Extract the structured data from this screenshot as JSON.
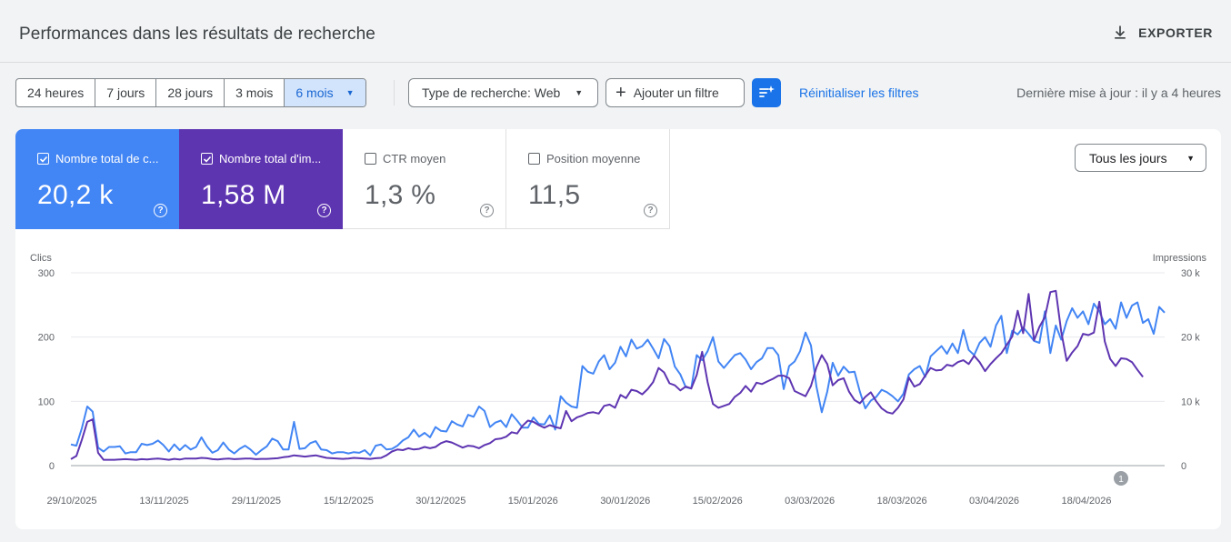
{
  "header": {
    "title": "Performances dans les résultats de recherche",
    "export_label": "EXPORTER"
  },
  "toolbar": {
    "ranges": [
      "24 heures",
      "7 jours",
      "28 jours",
      "3 mois",
      "6 mois"
    ],
    "active_range": "6 mois",
    "search_type": "Type de recherche: Web",
    "add_filter": "Ajouter un filtre",
    "reset_filters": "Réinitialiser les filtres",
    "last_update": "Dernière mise à jour : il y a 4 heures"
  },
  "metrics": [
    {
      "label": "Nombre total de c...",
      "value": "20,2 k",
      "checked": true,
      "color": "#4285f4"
    },
    {
      "label": "Nombre total d'im...",
      "value": "1,58 M",
      "checked": true,
      "color": "#5e35b1"
    },
    {
      "label": "CTR moyen",
      "value": "1,3 %",
      "checked": false
    },
    {
      "label": "Position moyenne",
      "value": "11,5",
      "checked": false
    }
  ],
  "granularity": "Tous les jours",
  "colors": {
    "clicks": "#4285f4",
    "impressions": "#5e35b1",
    "accent": "#1a73e8"
  },
  "chart_data": {
    "type": "line",
    "left_axis_title": "Clics",
    "right_axis_title": "Impressions",
    "left_ticks": [
      "0",
      "100",
      "200",
      "300"
    ],
    "right_ticks": [
      "0",
      "10 k",
      "20 k",
      "30 k"
    ],
    "ylim_left": [
      0,
      300
    ],
    "ylim_right": [
      0,
      30000
    ],
    "x_tick_labels": [
      "29/10/2025",
      "13/11/2025",
      "29/11/2025",
      "15/12/2025",
      "30/12/2025",
      "15/01/2026",
      "30/01/2026",
      "15/02/2026",
      "03/03/2026",
      "18/03/2026",
      "03/04/2026",
      "18/04/2026"
    ],
    "annotation": "1",
    "grid": true,
    "series": [
      {
        "name": "Clics",
        "axis": "left",
        "values": [
          33,
          31,
          58,
          92,
          84,
          28,
          22,
          29,
          29,
          30,
          19,
          21,
          21,
          34,
          32,
          34,
          39,
          32,
          22,
          33,
          24,
          32,
          25,
          29,
          44,
          30,
          20,
          24,
          36,
          25,
          19,
          26,
          31,
          25,
          17,
          24,
          30,
          42,
          38,
          25,
          25,
          68,
          26,
          27,
          35,
          38,
          25,
          24,
          19,
          21,
          21,
          19,
          21,
          20,
          24,
          16,
          31,
          33,
          25,
          26,
          31,
          39,
          44,
          56,
          45,
          51,
          44,
          60,
          54,
          53,
          69,
          64,
          61,
          79,
          76,
          92,
          85,
          60,
          67,
          70,
          60,
          80,
          70,
          59,
          59,
          75,
          65,
          64,
          78,
          56,
          108,
          98,
          92,
          90,
          155,
          146,
          143,
          162,
          172,
          150,
          160,
          185,
          170,
          196,
          182,
          186,
          196,
          182,
          167,
          197,
          186,
          154,
          142,
          122,
          120,
          172,
          164,
          178,
          200,
          162,
          152,
          162,
          172,
          175,
          165,
          150,
          161,
          167,
          183,
          183,
          172,
          119,
          155,
          162,
          178,
          207,
          187,
          123,
          83,
          115,
          160,
          140,
          154,
          145,
          146,
          115,
          89,
          101,
          107,
          118,
          114,
          108,
          100,
          112,
          142,
          150,
          155,
          138,
          170,
          178,
          186,
          174,
          190,
          175,
          211,
          180,
          172,
          191,
          200,
          185,
          218,
          233,
          175,
          210,
          204,
          215,
          205,
          194,
          191,
          240,
          175,
          218,
          196,
          225,
          245,
          230,
          240,
          220,
          252,
          240,
          220,
          228,
          213,
          254,
          230,
          249,
          254,
          222,
          228,
          205,
          247,
          238
        ]
      },
      {
        "name": "Impressions",
        "axis": "right",
        "values": [
          1000,
          1500,
          4000,
          6800,
          7200,
          2000,
          900,
          900,
          900,
          950,
          1000,
          950,
          900,
          1000,
          950,
          1050,
          1100,
          1000,
          900,
          1050,
          950,
          1100,
          1100,
          1100,
          1200,
          1150,
          1000,
          950,
          1050,
          1100,
          1000,
          1050,
          1100,
          1100,
          1000,
          1050,
          1050,
          1100,
          1150,
          1300,
          1400,
          1600,
          1500,
          1400,
          1500,
          1600,
          1400,
          1200,
          1150,
          1100,
          1050,
          1100,
          1200,
          1150,
          1100,
          1050,
          1150,
          1200,
          1600,
          2200,
          2500,
          2400,
          2700,
          2500,
          2600,
          2900,
          2700,
          2900,
          3500,
          3800,
          3600,
          3200,
          2800,
          3100,
          3000,
          2700,
          3200,
          3500,
          4100,
          4200,
          4500,
          5200,
          5000,
          6200,
          7000,
          6800,
          6300,
          5900,
          6300,
          6000,
          5800,
          8500,
          6900,
          7500,
          7800,
          8200,
          8300,
          8100,
          9300,
          9500,
          9000,
          11000,
          10500,
          11800,
          11600,
          11100,
          11900,
          13000,
          15200,
          14500,
          12800,
          12500,
          11700,
          12300,
          12000,
          14100,
          17700,
          13000,
          9600,
          9000,
          9300,
          9600,
          10700,
          11300,
          12400,
          11500,
          12900,
          12700,
          13100,
          13500,
          14000,
          14000,
          13600,
          11600,
          11200,
          10800,
          12400,
          15300,
          17200,
          15800,
          12500,
          13300,
          13600,
          11500,
          10200,
          9700,
          10700,
          11400,
          10000,
          8900,
          8300,
          8100,
          9000,
          10300,
          13700,
          12300,
          12700,
          14000,
          15200,
          14800,
          14900,
          15700,
          15500,
          16100,
          16400,
          15800,
          17100,
          16100,
          14700,
          15800,
          16700,
          17500,
          18800,
          20100,
          24100,
          20600,
          26700,
          19500,
          21600,
          23100,
          27000,
          27200,
          20800,
          16300,
          17600,
          18600,
          20500,
          20300,
          20700,
          25500,
          19300,
          16600,
          15500,
          16700,
          16600,
          16100,
          14900,
          13800
        ]
      }
    ]
  }
}
